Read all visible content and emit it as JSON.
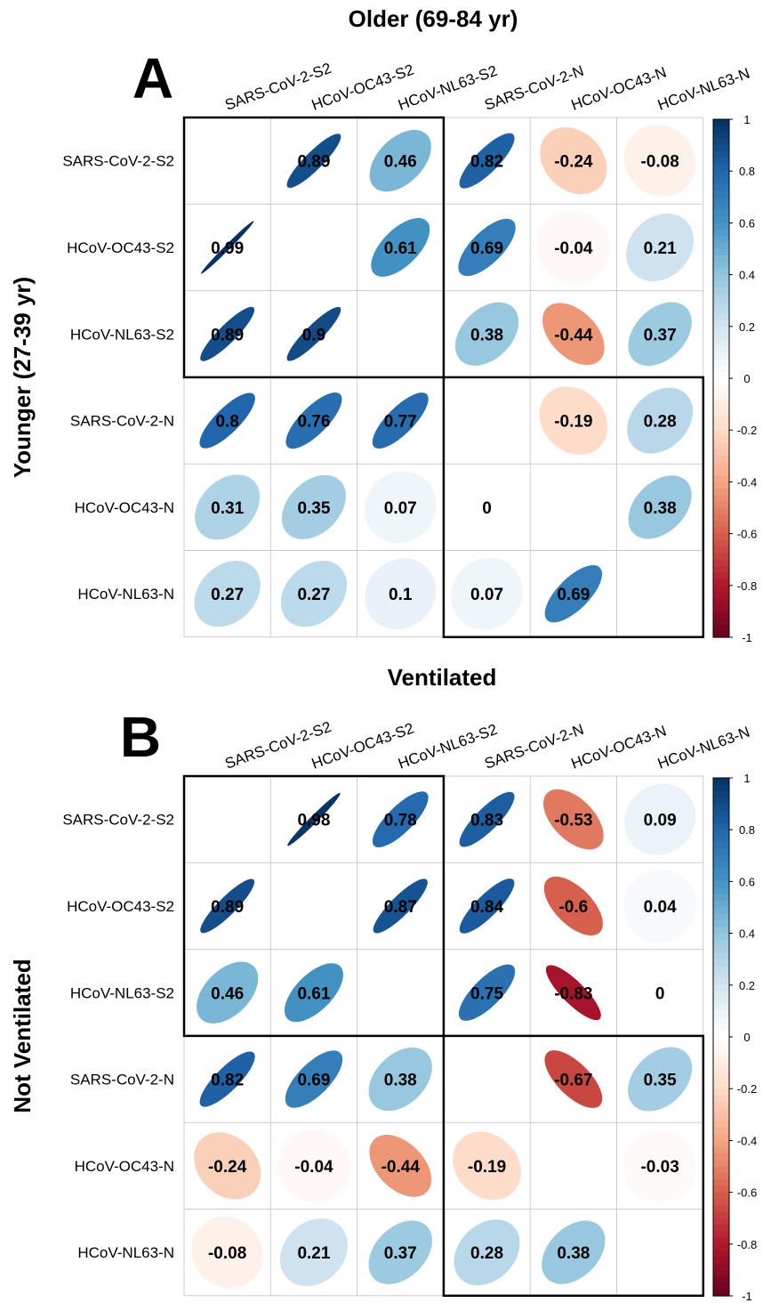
{
  "panels": [
    {
      "letter": "A",
      "title": "Older (69-84 yr)",
      "row_label": "Younger (27-39 yr)"
    },
    {
      "letter": "B",
      "title": "Ventilated",
      "row_label": "Not Ventilated"
    }
  ],
  "chart_data": [
    {
      "type": "heatmap",
      "glyph": "ellipse",
      "title": "Older (69-84 yr)",
      "ylabel": "Younger (27-39 yr)",
      "variables": [
        "SARS-CoV-2-S2",
        "HCoV-OC43-S2",
        "HCoV-NL63-S2",
        "SARS-CoV-2-N",
        "HCoV-OC43-N",
        "HCoV-NL63-N"
      ],
      "matrix": [
        [
          null,
          0.89,
          0.46,
          0.82,
          -0.24,
          -0.08
        ],
        [
          0.99,
          null,
          0.61,
          0.69,
          -0.04,
          0.21
        ],
        [
          0.89,
          0.9,
          null,
          0.38,
          -0.44,
          0.37
        ],
        [
          0.8,
          0.76,
          0.77,
          null,
          -0.19,
          0.28
        ],
        [
          0.31,
          0.35,
          0.07,
          0,
          null,
          0.38
        ],
        [
          0.27,
          0.27,
          0.1,
          0.07,
          0.69,
          null
        ]
      ],
      "color_scale": {
        "min": -1,
        "max": 1,
        "ticks": [
          "1",
          "0.8",
          "0.6",
          "0.4",
          "0.2",
          "0",
          "-0.2",
          "-0.4",
          "-0.6",
          "-0.8",
          "-1"
        ]
      }
    },
    {
      "type": "heatmap",
      "glyph": "ellipse",
      "title": "Ventilated",
      "ylabel": "Not Ventilated",
      "variables": [
        "SARS-CoV-2-S2",
        "HCoV-OC43-S2",
        "HCoV-NL63-S2",
        "SARS-CoV-2-N",
        "HCoV-OC43-N",
        "HCoV-NL63-N"
      ],
      "matrix": [
        [
          null,
          0.98,
          0.78,
          0.83,
          -0.53,
          0.09
        ],
        [
          0.89,
          null,
          0.87,
          0.84,
          -0.6,
          0.04
        ],
        [
          0.46,
          0.61,
          null,
          0.75,
          -0.83,
          0
        ],
        [
          0.82,
          0.69,
          0.38,
          null,
          -0.67,
          0.35
        ],
        [
          -0.24,
          -0.04,
          -0.44,
          -0.19,
          null,
          -0.03
        ],
        [
          -0.08,
          0.21,
          0.37,
          0.28,
          0.38,
          null
        ]
      ],
      "color_scale": {
        "min": -1,
        "max": 1,
        "ticks": [
          "1",
          "0.8",
          "0.6",
          "0.4",
          "0.2",
          "0",
          "-0.2",
          "-0.4",
          "-0.6",
          "-0.8",
          "-1"
        ]
      }
    }
  ],
  "colors": {
    "palette": [
      "#67001F",
      "#B2182B",
      "#D6604D",
      "#F4A582",
      "#FDDBC7",
      "#FFFFFF",
      "#D1E5F0",
      "#92C5DE",
      "#4393C3",
      "#2166AC",
      "#053061"
    ],
    "grid": "#cccccc",
    "block_outline": "#000000"
  }
}
